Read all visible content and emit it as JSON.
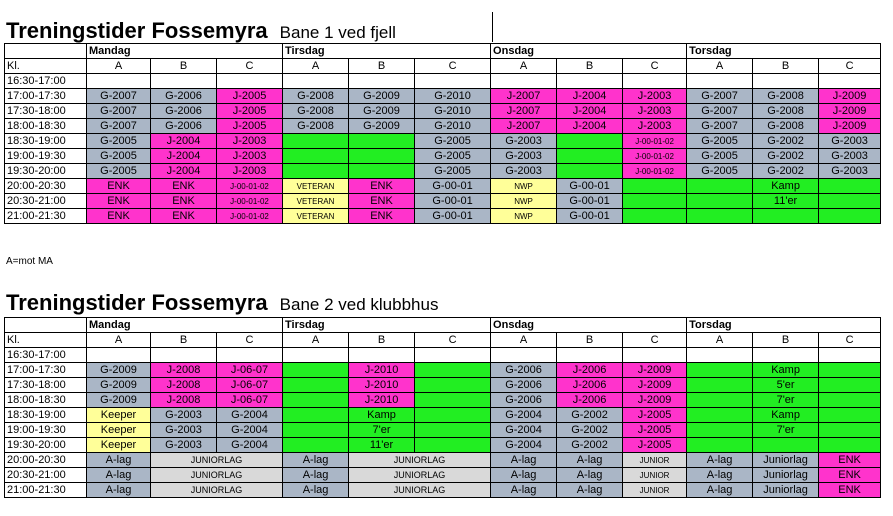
{
  "section1": {
    "title": "Treningstider Fossemyra",
    "subtitle": "Bane 1 ved fjell",
    "days": [
      "Mandag",
      "Tirsdag",
      "Onsdag",
      "Torsdag"
    ],
    "kl": "Kl.",
    "fields": [
      "A",
      "B",
      "C"
    ],
    "times": [
      "16:30-17:00",
      "17:00-17:30",
      "17:30-18:00",
      "18:00-18:30",
      "18:30-19:00",
      "19:00-19:30",
      "19:30-20:00",
      "20:00-20:30",
      "20:30-21:00",
      "21:00-21:30"
    ],
    "rows": [
      [
        [
          "",
          ""
        ],
        [
          "",
          ""
        ],
        [
          "",
          ""
        ],
        [
          "",
          ""
        ],
        [
          "",
          ""
        ],
        [
          "",
          ""
        ],
        [
          "",
          ""
        ],
        [
          "",
          ""
        ],
        [
          "",
          ""
        ],
        [
          "",
          ""
        ],
        [
          "",
          ""
        ],
        [
          "",
          ""
        ]
      ],
      [
        [
          "G-2007",
          "g"
        ],
        [
          "G-2006",
          "g"
        ],
        [
          "J-2005",
          "p"
        ],
        [
          "G-2008",
          "g"
        ],
        [
          "G-2009",
          "g"
        ],
        [
          "G-2010",
          "g"
        ],
        [
          "J-2007",
          "p"
        ],
        [
          "J-2004",
          "p"
        ],
        [
          "J-2003",
          "p"
        ],
        [
          "G-2007",
          "g"
        ],
        [
          "G-2008",
          "g"
        ],
        [
          "J-2009",
          "p"
        ]
      ],
      [
        [
          "G-2007",
          "g"
        ],
        [
          "G-2006",
          "g"
        ],
        [
          "J-2005",
          "p"
        ],
        [
          "G-2008",
          "g"
        ],
        [
          "G-2009",
          "g"
        ],
        [
          "G-2010",
          "g"
        ],
        [
          "J-2007",
          "p"
        ],
        [
          "J-2004",
          "p"
        ],
        [
          "J-2003",
          "p"
        ],
        [
          "G-2007",
          "g"
        ],
        [
          "G-2008",
          "g"
        ],
        [
          "J-2009",
          "p"
        ]
      ],
      [
        [
          "G-2007",
          "g"
        ],
        [
          "G-2006",
          "g"
        ],
        [
          "J-2005",
          "p"
        ],
        [
          "G-2008",
          "g"
        ],
        [
          "G-2009",
          "g"
        ],
        [
          "G-2010",
          "g"
        ],
        [
          "J-2007",
          "p"
        ],
        [
          "J-2004",
          "p"
        ],
        [
          "J-2003",
          "p"
        ],
        [
          "G-2007",
          "g"
        ],
        [
          "G-2008",
          "g"
        ],
        [
          "J-2009",
          "p"
        ]
      ],
      [
        [
          "G-2005",
          "g"
        ],
        [
          "J-2004",
          "p"
        ],
        [
          "J-2003",
          "p"
        ],
        [
          "",
          "gr"
        ],
        [
          "",
          "gr"
        ],
        [
          "G-2005",
          "g"
        ],
        [
          "G-2003",
          "g"
        ],
        [
          "",
          "gr"
        ],
        [
          "J-00-01-02",
          "p"
        ],
        [
          "G-2005",
          "g"
        ],
        [
          "G-2002",
          "g"
        ],
        [
          "G-2003",
          "g"
        ]
      ],
      [
        [
          "G-2005",
          "g"
        ],
        [
          "J-2004",
          "p"
        ],
        [
          "J-2003",
          "p"
        ],
        [
          "",
          "gr"
        ],
        [
          "",
          "gr"
        ],
        [
          "G-2005",
          "g"
        ],
        [
          "G-2003",
          "g"
        ],
        [
          "",
          "gr"
        ],
        [
          "J-00-01-02",
          "p"
        ],
        [
          "G-2005",
          "g"
        ],
        [
          "G-2002",
          "g"
        ],
        [
          "G-2003",
          "g"
        ]
      ],
      [
        [
          "G-2005",
          "g"
        ],
        [
          "J-2004",
          "p"
        ],
        [
          "J-2003",
          "p"
        ],
        [
          "",
          "gr"
        ],
        [
          "",
          "gr"
        ],
        [
          "G-2005",
          "g"
        ],
        [
          "G-2003",
          "g"
        ],
        [
          "",
          "gr"
        ],
        [
          "J-00-01-02",
          "p"
        ],
        [
          "G-2005",
          "g"
        ],
        [
          "G-2002",
          "g"
        ],
        [
          "G-2003",
          "g"
        ]
      ],
      [
        [
          "ENK",
          "p"
        ],
        [
          "ENK",
          "p"
        ],
        [
          "J-00-01-02",
          "p"
        ],
        [
          "VETERAN",
          "y"
        ],
        [
          "ENK",
          "p"
        ],
        [
          "G-00-01",
          "g"
        ],
        [
          "NWP",
          "y"
        ],
        [
          "G-00-01",
          "g"
        ],
        [
          "",
          "gr"
        ],
        [
          "",
          "gr"
        ],
        [
          "Kamp",
          "gr"
        ],
        [
          "",
          "gr"
        ]
      ],
      [
        [
          "ENK",
          "p"
        ],
        [
          "ENK",
          "p"
        ],
        [
          "J-00-01-02",
          "p"
        ],
        [
          "VETERAN",
          "y"
        ],
        [
          "ENK",
          "p"
        ],
        [
          "G-00-01",
          "g"
        ],
        [
          "NWP",
          "y"
        ],
        [
          "G-00-01",
          "g"
        ],
        [
          "",
          "gr"
        ],
        [
          "",
          "gr"
        ],
        [
          "11'er",
          "gr"
        ],
        [
          "",
          "gr"
        ]
      ],
      [
        [
          "ENK",
          "p"
        ],
        [
          "ENK",
          "p"
        ],
        [
          "J-00-01-02",
          "p"
        ],
        [
          "VETERAN",
          "y"
        ],
        [
          "ENK",
          "p"
        ],
        [
          "G-00-01",
          "g"
        ],
        [
          "NWP",
          "y"
        ],
        [
          "G-00-01",
          "g"
        ],
        [
          "",
          "gr"
        ],
        [
          "",
          "gr"
        ],
        [
          "",
          "gr"
        ],
        [
          "",
          "gr"
        ]
      ]
    ],
    "note": "A=mot MA"
  },
  "section2": {
    "title": "Treningstider Fossemyra",
    "subtitle": "Bane 2 ved klubbhus",
    "days": [
      "Mandag",
      "Tirsdag",
      "Onsdag",
      "Torsdag"
    ],
    "kl": "Kl.",
    "fields": [
      "A",
      "B",
      "C"
    ],
    "times": [
      "16:30-17:00",
      "17:00-17:30",
      "17:30-18:00",
      "18:00-18:30",
      "18:30-19:00",
      "19:00-19:30",
      "19:30-20:00",
      "20:00-20:30",
      "20:30-21:00",
      "21:00-21:30"
    ],
    "rows": [
      [
        [
          "",
          ""
        ],
        [
          "",
          ""
        ],
        [
          "",
          ""
        ],
        [
          "",
          ""
        ],
        [
          "",
          ""
        ],
        [
          "",
          ""
        ],
        [
          "",
          ""
        ],
        [
          "",
          ""
        ],
        [
          "",
          ""
        ],
        [
          "",
          ""
        ],
        [
          "",
          ""
        ],
        [
          "",
          ""
        ]
      ],
      [
        [
          "G-2009",
          "g"
        ],
        [
          "J-2008",
          "p"
        ],
        [
          "J-06-07",
          "p"
        ],
        [
          "",
          "gr"
        ],
        [
          "J-2010",
          "p"
        ],
        [
          "",
          "gr"
        ],
        [
          "G-2006",
          "g"
        ],
        [
          "J-2006",
          "p"
        ],
        [
          "J-2009",
          "p"
        ],
        [
          "",
          "gr"
        ],
        [
          "Kamp",
          "gr"
        ],
        [
          "",
          "gr"
        ]
      ],
      [
        [
          "G-2009",
          "g"
        ],
        [
          "J-2008",
          "p"
        ],
        [
          "J-06-07",
          "p"
        ],
        [
          "",
          "gr"
        ],
        [
          "J-2010",
          "p"
        ],
        [
          "",
          "gr"
        ],
        [
          "G-2006",
          "g"
        ],
        [
          "J-2006",
          "p"
        ],
        [
          "J-2009",
          "p"
        ],
        [
          "",
          "gr"
        ],
        [
          "5'er",
          "gr"
        ],
        [
          "",
          "gr"
        ]
      ],
      [
        [
          "G-2009",
          "g"
        ],
        [
          "J-2008",
          "p"
        ],
        [
          "J-06-07",
          "p"
        ],
        [
          "",
          "gr"
        ],
        [
          "J-2010",
          "p"
        ],
        [
          "",
          "gr"
        ],
        [
          "G-2006",
          "g"
        ],
        [
          "J-2006",
          "p"
        ],
        [
          "J-2009",
          "p"
        ],
        [
          "",
          "gr"
        ],
        [
          "7'er",
          "gr"
        ],
        [
          "",
          "gr"
        ]
      ],
      [
        [
          "Keeper",
          "y"
        ],
        [
          "G-2003",
          "g"
        ],
        [
          "G-2004",
          "g"
        ],
        [
          "",
          "gr"
        ],
        [
          "Kamp",
          "gr"
        ],
        [
          "",
          "gr"
        ],
        [
          "G-2004",
          "g"
        ],
        [
          "G-2002",
          "g"
        ],
        [
          "J-2005",
          "p"
        ],
        [
          "",
          "gr"
        ],
        [
          "Kamp",
          "gr"
        ],
        [
          "",
          "gr"
        ]
      ],
      [
        [
          "Keeper",
          "y"
        ],
        [
          "G-2003",
          "g"
        ],
        [
          "G-2004",
          "g"
        ],
        [
          "",
          "gr"
        ],
        [
          "7'er",
          "gr"
        ],
        [
          "",
          "gr"
        ],
        [
          "G-2004",
          "g"
        ],
        [
          "G-2002",
          "g"
        ],
        [
          "J-2005",
          "p"
        ],
        [
          "",
          "gr"
        ],
        [
          "7'er",
          "gr"
        ],
        [
          "",
          "gr"
        ]
      ],
      [
        [
          "Keeper",
          "y"
        ],
        [
          "G-2003",
          "g"
        ],
        [
          "G-2004",
          "g"
        ],
        [
          "",
          "gr"
        ],
        [
          "11'er",
          "gr"
        ],
        [
          "",
          "gr"
        ],
        [
          "G-2004",
          "g"
        ],
        [
          "G-2002",
          "g"
        ],
        [
          "J-2005",
          "p"
        ],
        [
          "",
          "gr"
        ],
        [
          "",
          "gr"
        ],
        [
          "",
          "gr"
        ]
      ],
      [
        [
          "A-lag",
          "g"
        ],
        [
          "JUNIORLAG",
          "lg"
        ],
        [
          "",
          "lg"
        ],
        [
          "A-lag",
          "g"
        ],
        [
          "JUNIORLAG",
          "lg"
        ],
        [
          "",
          "lg"
        ],
        [
          "A-lag",
          "g"
        ],
        [
          "A-lag",
          "g"
        ],
        [
          "JUNIOR",
          "lg"
        ],
        [
          "A-lag",
          "g"
        ],
        [
          "Juniorlag",
          "g"
        ],
        [
          "ENK",
          "p"
        ]
      ],
      [
        [
          "A-lag",
          "g"
        ],
        [
          "JUNIORLAG",
          "lg"
        ],
        [
          "",
          "lg"
        ],
        [
          "A-lag",
          "g"
        ],
        [
          "JUNIORLAG",
          "lg"
        ],
        [
          "",
          "lg"
        ],
        [
          "A-lag",
          "g"
        ],
        [
          "A-lag",
          "g"
        ],
        [
          "JUNIOR",
          "lg"
        ],
        [
          "A-lag",
          "g"
        ],
        [
          "Juniorlag",
          "g"
        ],
        [
          "ENK",
          "p"
        ]
      ],
      [
        [
          "A-lag",
          "g"
        ],
        [
          "JUNIORLAG",
          "lg"
        ],
        [
          "",
          "lg"
        ],
        [
          "A-lag",
          "g"
        ],
        [
          "JUNIORLAG",
          "lg"
        ],
        [
          "",
          "lg"
        ],
        [
          "A-lag",
          "g"
        ],
        [
          "A-lag",
          "g"
        ],
        [
          "JUNIOR",
          "lg"
        ],
        [
          "A-lag",
          "g"
        ],
        [
          "Juniorlag",
          "g"
        ],
        [
          "ENK",
          "p"
        ]
      ]
    ]
  }
}
